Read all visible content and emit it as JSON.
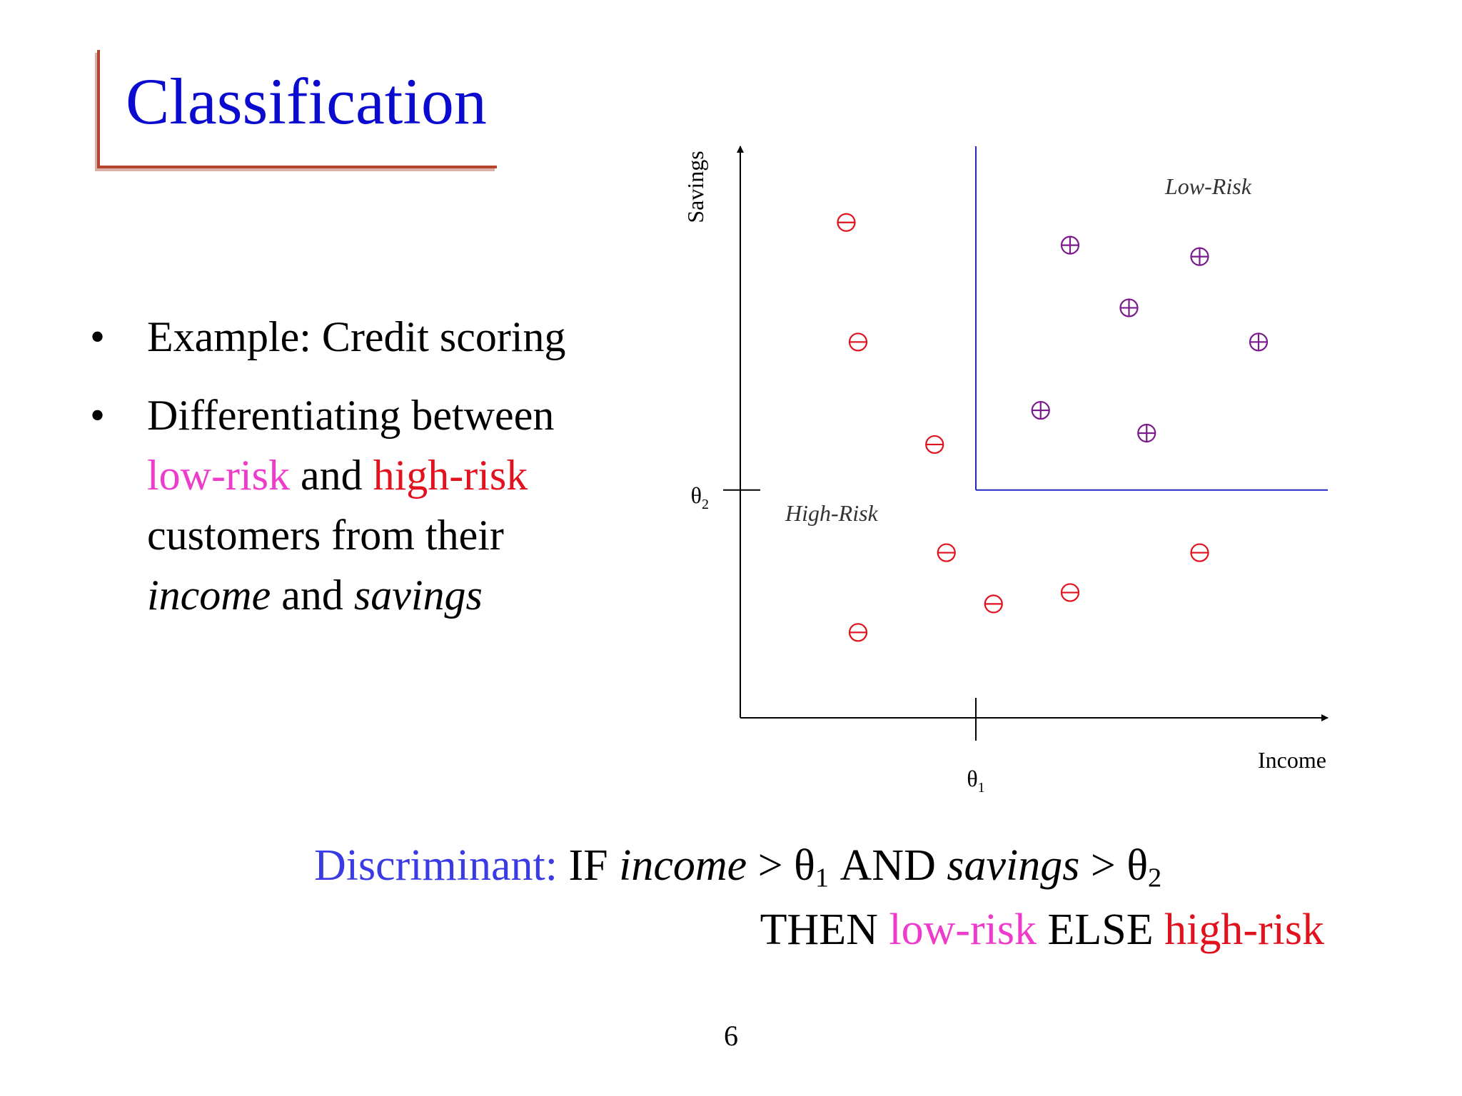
{
  "slide": {
    "title": "Classification",
    "page_number": "6"
  },
  "bullets": [
    {
      "text": "Example: Credit scoring"
    },
    {
      "parts": [
        "Differentiating between ",
        "low-risk",
        " and ",
        "high-risk",
        " customers from their ",
        "income",
        " and ",
        "savings"
      ]
    }
  ],
  "formula": {
    "line1": {
      "label": "Discriminant:",
      "if": " IF ",
      "var1": "income",
      "gt1": " > θ",
      "sub1": "1",
      "and": " AND ",
      "var2": "savings",
      "gt2": " > θ",
      "sub2": "2"
    },
    "line2": {
      "then": "THEN ",
      "low": "low-risk",
      "else": " ELSE ",
      "high": "high-risk"
    }
  },
  "colors": {
    "title": "#0b0bcf",
    "low_risk": "#ee3bcb",
    "high_risk": "#e1121d",
    "discriminant": "#3b3be6",
    "plus_marker": "#7a1a8c",
    "minus_marker": "#e1121d",
    "boundary": "#2323c8"
  },
  "chart_data": {
    "type": "scatter",
    "xlabel": "Income",
    "ylabel": "Savings",
    "xlim": [
      0,
      10
    ],
    "ylim": [
      0,
      10
    ],
    "theta1": {
      "value": 4.0,
      "label": "θ",
      "sub": "1"
    },
    "theta2": {
      "value": 4.0,
      "label": "θ",
      "sub": "2"
    },
    "region_labels": {
      "low": "Low-Risk",
      "high": "High-Risk"
    },
    "series": [
      {
        "name": "low-risk",
        "marker": "plus",
        "points": [
          [
            5.6,
            8.3
          ],
          [
            7.8,
            8.1
          ],
          [
            6.6,
            7.2
          ],
          [
            8.8,
            6.6
          ],
          [
            5.1,
            5.4
          ],
          [
            6.9,
            5.0
          ]
        ]
      },
      {
        "name": "high-risk",
        "marker": "minus",
        "points": [
          [
            1.8,
            8.7
          ],
          [
            2.0,
            6.6
          ],
          [
            3.3,
            4.8
          ],
          [
            3.5,
            2.9
          ],
          [
            7.8,
            2.9
          ],
          [
            5.6,
            2.2
          ],
          [
            4.3,
            2.0
          ],
          [
            2.0,
            1.5
          ]
        ]
      }
    ]
  }
}
